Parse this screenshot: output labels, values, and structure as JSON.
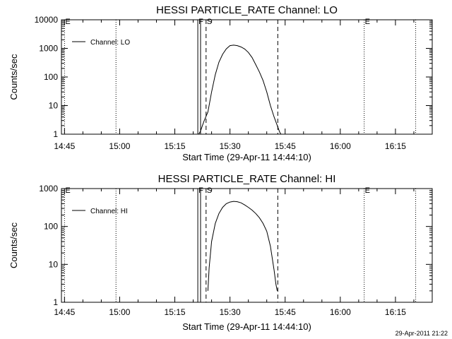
{
  "footer_timestamp": "29-Apr-2011 21:22",
  "chart_data": [
    {
      "type": "line",
      "title": "HESSI PARTICLE_RATE Channel: LO",
      "xlabel": "Start Time (29-Apr-11 14:44:10)",
      "ylabel": "Counts/sec",
      "yscale": "log",
      "ylim": [
        1,
        10000
      ],
      "xlim": [
        "14:44:10",
        "16:25:00"
      ],
      "grid": false,
      "legend_placement": "top-left",
      "x_ticks": [
        "14:45",
        "15:00",
        "15:15",
        "15:30",
        "15:45",
        "16:00",
        "16:15"
      ],
      "y_ticks": [
        "1",
        "10",
        "100",
        "1000",
        "10000"
      ],
      "series": [
        {
          "name": "Channel: LO",
          "x": [
            "15:21:30",
            "15:22:00",
            "15:22:30",
            "15:23:00",
            "15:24:00",
            "15:25:00",
            "15:26:00",
            "15:27:00",
            "15:28:00",
            "15:29:00",
            "15:30:00",
            "15:31:00",
            "15:32:00",
            "15:33:00",
            "15:34:00",
            "15:35:00",
            "15:36:00",
            "15:37:00",
            "15:38:00",
            "15:39:00",
            "15:40:00",
            "15:41:00",
            "15:42:00",
            "15:43:00",
            "15:43:30",
            "15:43:50"
          ],
          "y": [
            1,
            1.3,
            2,
            3,
            6,
            30,
            120,
            330,
            620,
            960,
            1250,
            1300,
            1250,
            1120,
            950,
            720,
            480,
            270,
            150,
            75,
            30,
            10,
            4,
            1.8,
            1.2,
            1
          ]
        }
      ],
      "markers": [
        {
          "label": "E",
          "time": "14:45:00",
          "style": "dotted"
        },
        {
          "label": "",
          "time": "14:59:00",
          "style": "dotted"
        },
        {
          "label": "F",
          "time": "15:21:15",
          "style": "solid"
        },
        {
          "label": "",
          "time": "15:22:00",
          "style": "solid"
        },
        {
          "label": "S",
          "time": "15:23:30",
          "style": "dashed"
        },
        {
          "label": "",
          "time": "15:43:00",
          "style": "dashed"
        },
        {
          "label": "E",
          "time": "16:06:30",
          "style": "dotted"
        },
        {
          "label": "",
          "time": "16:20:30",
          "style": "dotted"
        }
      ]
    },
    {
      "type": "line",
      "title": "HESSI PARTICLE_RATE Channel: HI",
      "xlabel": "Start Time (29-Apr-11 14:44:10)",
      "ylabel": "Counts/sec",
      "yscale": "log",
      "ylim": [
        1,
        1000
      ],
      "xlim": [
        "14:44:10",
        "16:25:00"
      ],
      "grid": false,
      "legend_placement": "top-left",
      "x_ticks": [
        "14:45",
        "15:00",
        "15:15",
        "15:30",
        "15:45",
        "16:00",
        "16:15"
      ],
      "y_ticks": [
        "1",
        "10",
        "100",
        "1000"
      ],
      "series": [
        {
          "name": "Channel: HI",
          "x": [
            "15:24:00",
            "15:24:20",
            "15:25:00",
            "15:26:00",
            "15:27:00",
            "15:28:00",
            "15:29:00",
            "15:30:00",
            "15:31:00",
            "15:32:00",
            "15:33:00",
            "15:34:00",
            "15:35:00",
            "15:36:00",
            "15:37:00",
            "15:38:00",
            "15:39:00",
            "15:40:00",
            "15:41:00",
            "15:42:00",
            "15:42:30",
            "15:42:50"
          ],
          "y": [
            2,
            8,
            40,
            120,
            220,
            320,
            400,
            440,
            460,
            450,
            420,
            370,
            320,
            270,
            220,
            170,
            120,
            75,
            30,
            7,
            3,
            2
          ]
        }
      ],
      "markers": [
        {
          "label": "E",
          "time": "14:45:00",
          "style": "dotted"
        },
        {
          "label": "",
          "time": "14:59:00",
          "style": "dotted"
        },
        {
          "label": "F",
          "time": "15:21:15",
          "style": "solid"
        },
        {
          "label": "",
          "time": "15:22:00",
          "style": "solid"
        },
        {
          "label": "S",
          "time": "15:23:30",
          "style": "dashed"
        },
        {
          "label": "",
          "time": "15:43:00",
          "style": "dashed"
        },
        {
          "label": "E",
          "time": "16:06:30",
          "style": "dotted"
        },
        {
          "label": "",
          "time": "16:20:30",
          "style": "dotted"
        }
      ]
    }
  ]
}
